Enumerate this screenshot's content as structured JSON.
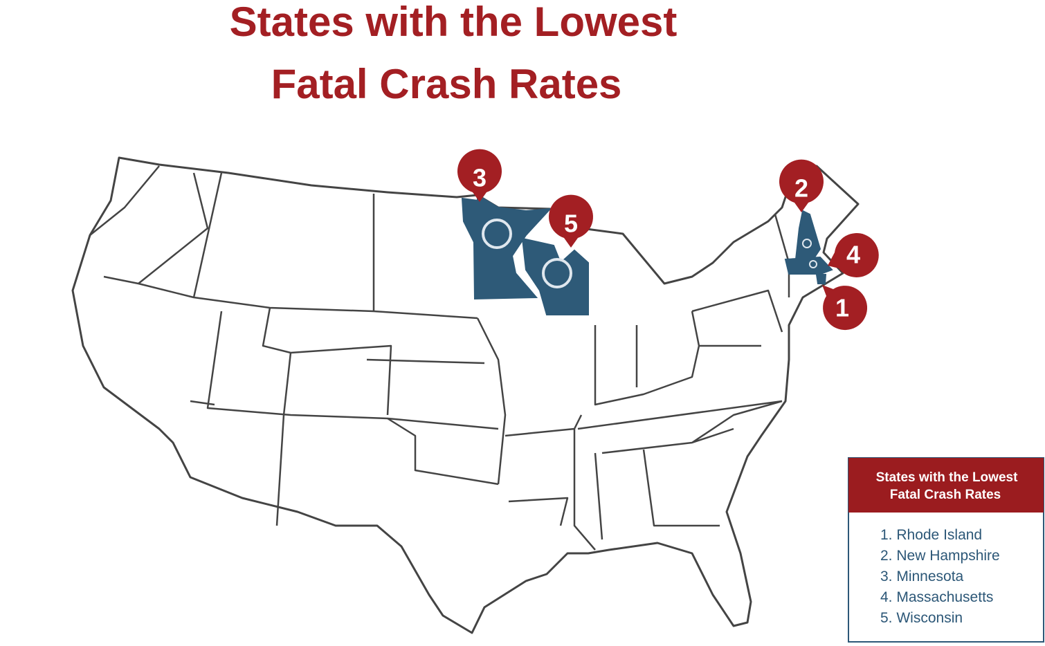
{
  "title": [
    "States with the Lowest",
    "Fatal Crash Rates"
  ],
  "pins": [
    "3",
    "5",
    "2",
    "4",
    "1"
  ],
  "legend": {
    "title": [
      "States with the Lowest",
      "Fatal Crash Rates"
    ],
    "items": [
      "1. Rhode Island",
      "2. New Hampshire",
      "3. Minnesota",
      "4. Massachusetts",
      "5. Wisconsin"
    ]
  }
}
